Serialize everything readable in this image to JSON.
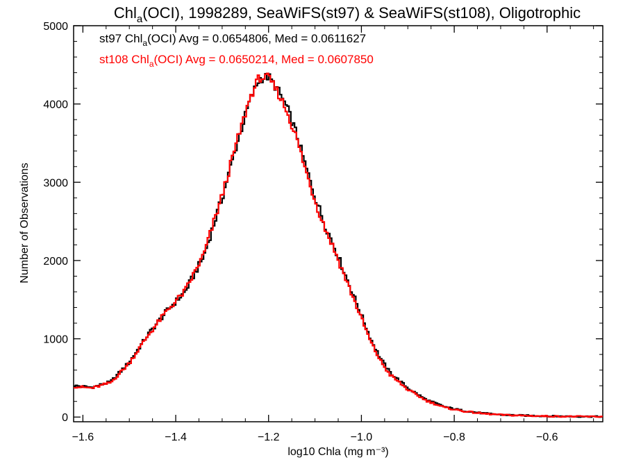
{
  "chart_data": {
    "type": "line",
    "title": "Chlₐ(OCI), 1998289, SeaWiFS(st97) & SeaWiFS(st108), Oligotrophic",
    "title_parts": {
      "base": "Chl",
      "sub": "a",
      "rest": "(OCI), 1998289, SeaWiFS(st97) & SeaWiFS(st108), Oligotrophic"
    },
    "xlabel": "log10 Chla (mg m⁻³)",
    "ylabel": "Number of Observations",
    "xlim": [
      -1.62,
      -0.48
    ],
    "ylim": [
      -60,
      5000
    ],
    "xticks": [
      -1.6,
      -1.4,
      -1.2,
      -1.0,
      -0.8,
      -0.6
    ],
    "xtick_labels": [
      "−1.6",
      "−1.4",
      "−1.2",
      "−1.0",
      "−0.8",
      "−0.6"
    ],
    "yticks": [
      0,
      1000,
      2000,
      3000,
      4000,
      5000
    ],
    "ytick_labels": [
      "0",
      "1000",
      "2000",
      "3000",
      "4000",
      "5000"
    ],
    "grid": false,
    "bin_width": 0.004,
    "x": [
      -1.62,
      -1.58,
      -1.54,
      -1.5,
      -1.46,
      -1.42,
      -1.38,
      -1.34,
      -1.3,
      -1.27,
      -1.24,
      -1.22,
      -1.2,
      -1.18,
      -1.16,
      -1.14,
      -1.12,
      -1.1,
      -1.08,
      -1.06,
      -1.04,
      -1.02,
      -1.0,
      -0.98,
      -0.96,
      -0.94,
      -0.9,
      -0.86,
      -0.82,
      -0.78,
      -0.74,
      -0.7,
      -0.65,
      -0.6,
      -0.55,
      -0.48
    ],
    "series": [
      {
        "label": "st97",
        "stats_prefix": "st97 Chl",
        "stats_sub": "a",
        "stats_rest": "(OCI) Avg = 0.0654806, Med = 0.0611627",
        "color": "#000000",
        "values": [
          400,
          380,
          450,
          700,
          1050,
          1350,
          1600,
          2050,
          2800,
          3450,
          4050,
          4320,
          4350,
          4180,
          3950,
          3620,
          3200,
          2820,
          2480,
          2200,
          1900,
          1600,
          1300,
          1000,
          760,
          580,
          370,
          220,
          130,
          80,
          50,
          30,
          20,
          12,
          8,
          5
        ]
      },
      {
        "label": "st108",
        "stats_prefix": "st108 Chl",
        "stats_sub": "a",
        "stats_rest": "(OCI) Avg = 0.0650214, Med = 0.0607850",
        "color": "#ff0000",
        "values": [
          390,
          370,
          440,
          690,
          1040,
          1350,
          1610,
          2070,
          2830,
          3480,
          4080,
          4340,
          4330,
          4150,
          3900,
          3570,
          3150,
          2770,
          2440,
          2160,
          1860,
          1560,
          1260,
          960,
          730,
          550,
          350,
          210,
          120,
          75,
          45,
          28,
          18,
          11,
          7,
          5
        ]
      }
    ]
  }
}
